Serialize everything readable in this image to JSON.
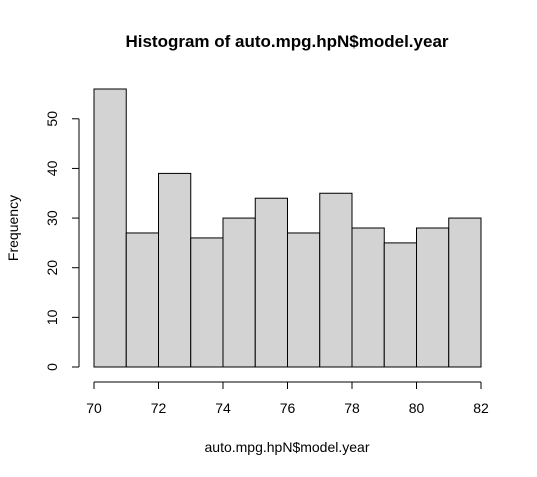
{
  "chart_data": {
    "type": "bar",
    "title": "Histogram of auto.mpg.hpN$model.year",
    "xlabel": "auto.mpg.hpN$model.year",
    "ylabel": "Frequency",
    "bins": [
      {
        "start": 70,
        "end": 71,
        "count": 56
      },
      {
        "start": 71,
        "end": 72,
        "count": 27
      },
      {
        "start": 72,
        "end": 73,
        "count": 39
      },
      {
        "start": 73,
        "end": 74,
        "count": 26
      },
      {
        "start": 74,
        "end": 75,
        "count": 30
      },
      {
        "start": 75,
        "end": 76,
        "count": 34
      },
      {
        "start": 76,
        "end": 77,
        "count": 27
      },
      {
        "start": 77,
        "end": 78,
        "count": 35
      },
      {
        "start": 78,
        "end": 79,
        "count": 28
      },
      {
        "start": 79,
        "end": 80,
        "count": 25
      },
      {
        "start": 80,
        "end": 81,
        "count": 28
      },
      {
        "start": 81,
        "end": 82,
        "count": 30
      }
    ],
    "xlim": [
      70,
      82
    ],
    "ylim": [
      0,
      56
    ],
    "x_ticks": [
      70,
      72,
      74,
      76,
      78,
      80,
      82
    ],
    "y_ticks": [
      0,
      10,
      20,
      30,
      40,
      50
    ],
    "bar_color": "#d3d3d3",
    "grid": false,
    "legend": "none"
  }
}
